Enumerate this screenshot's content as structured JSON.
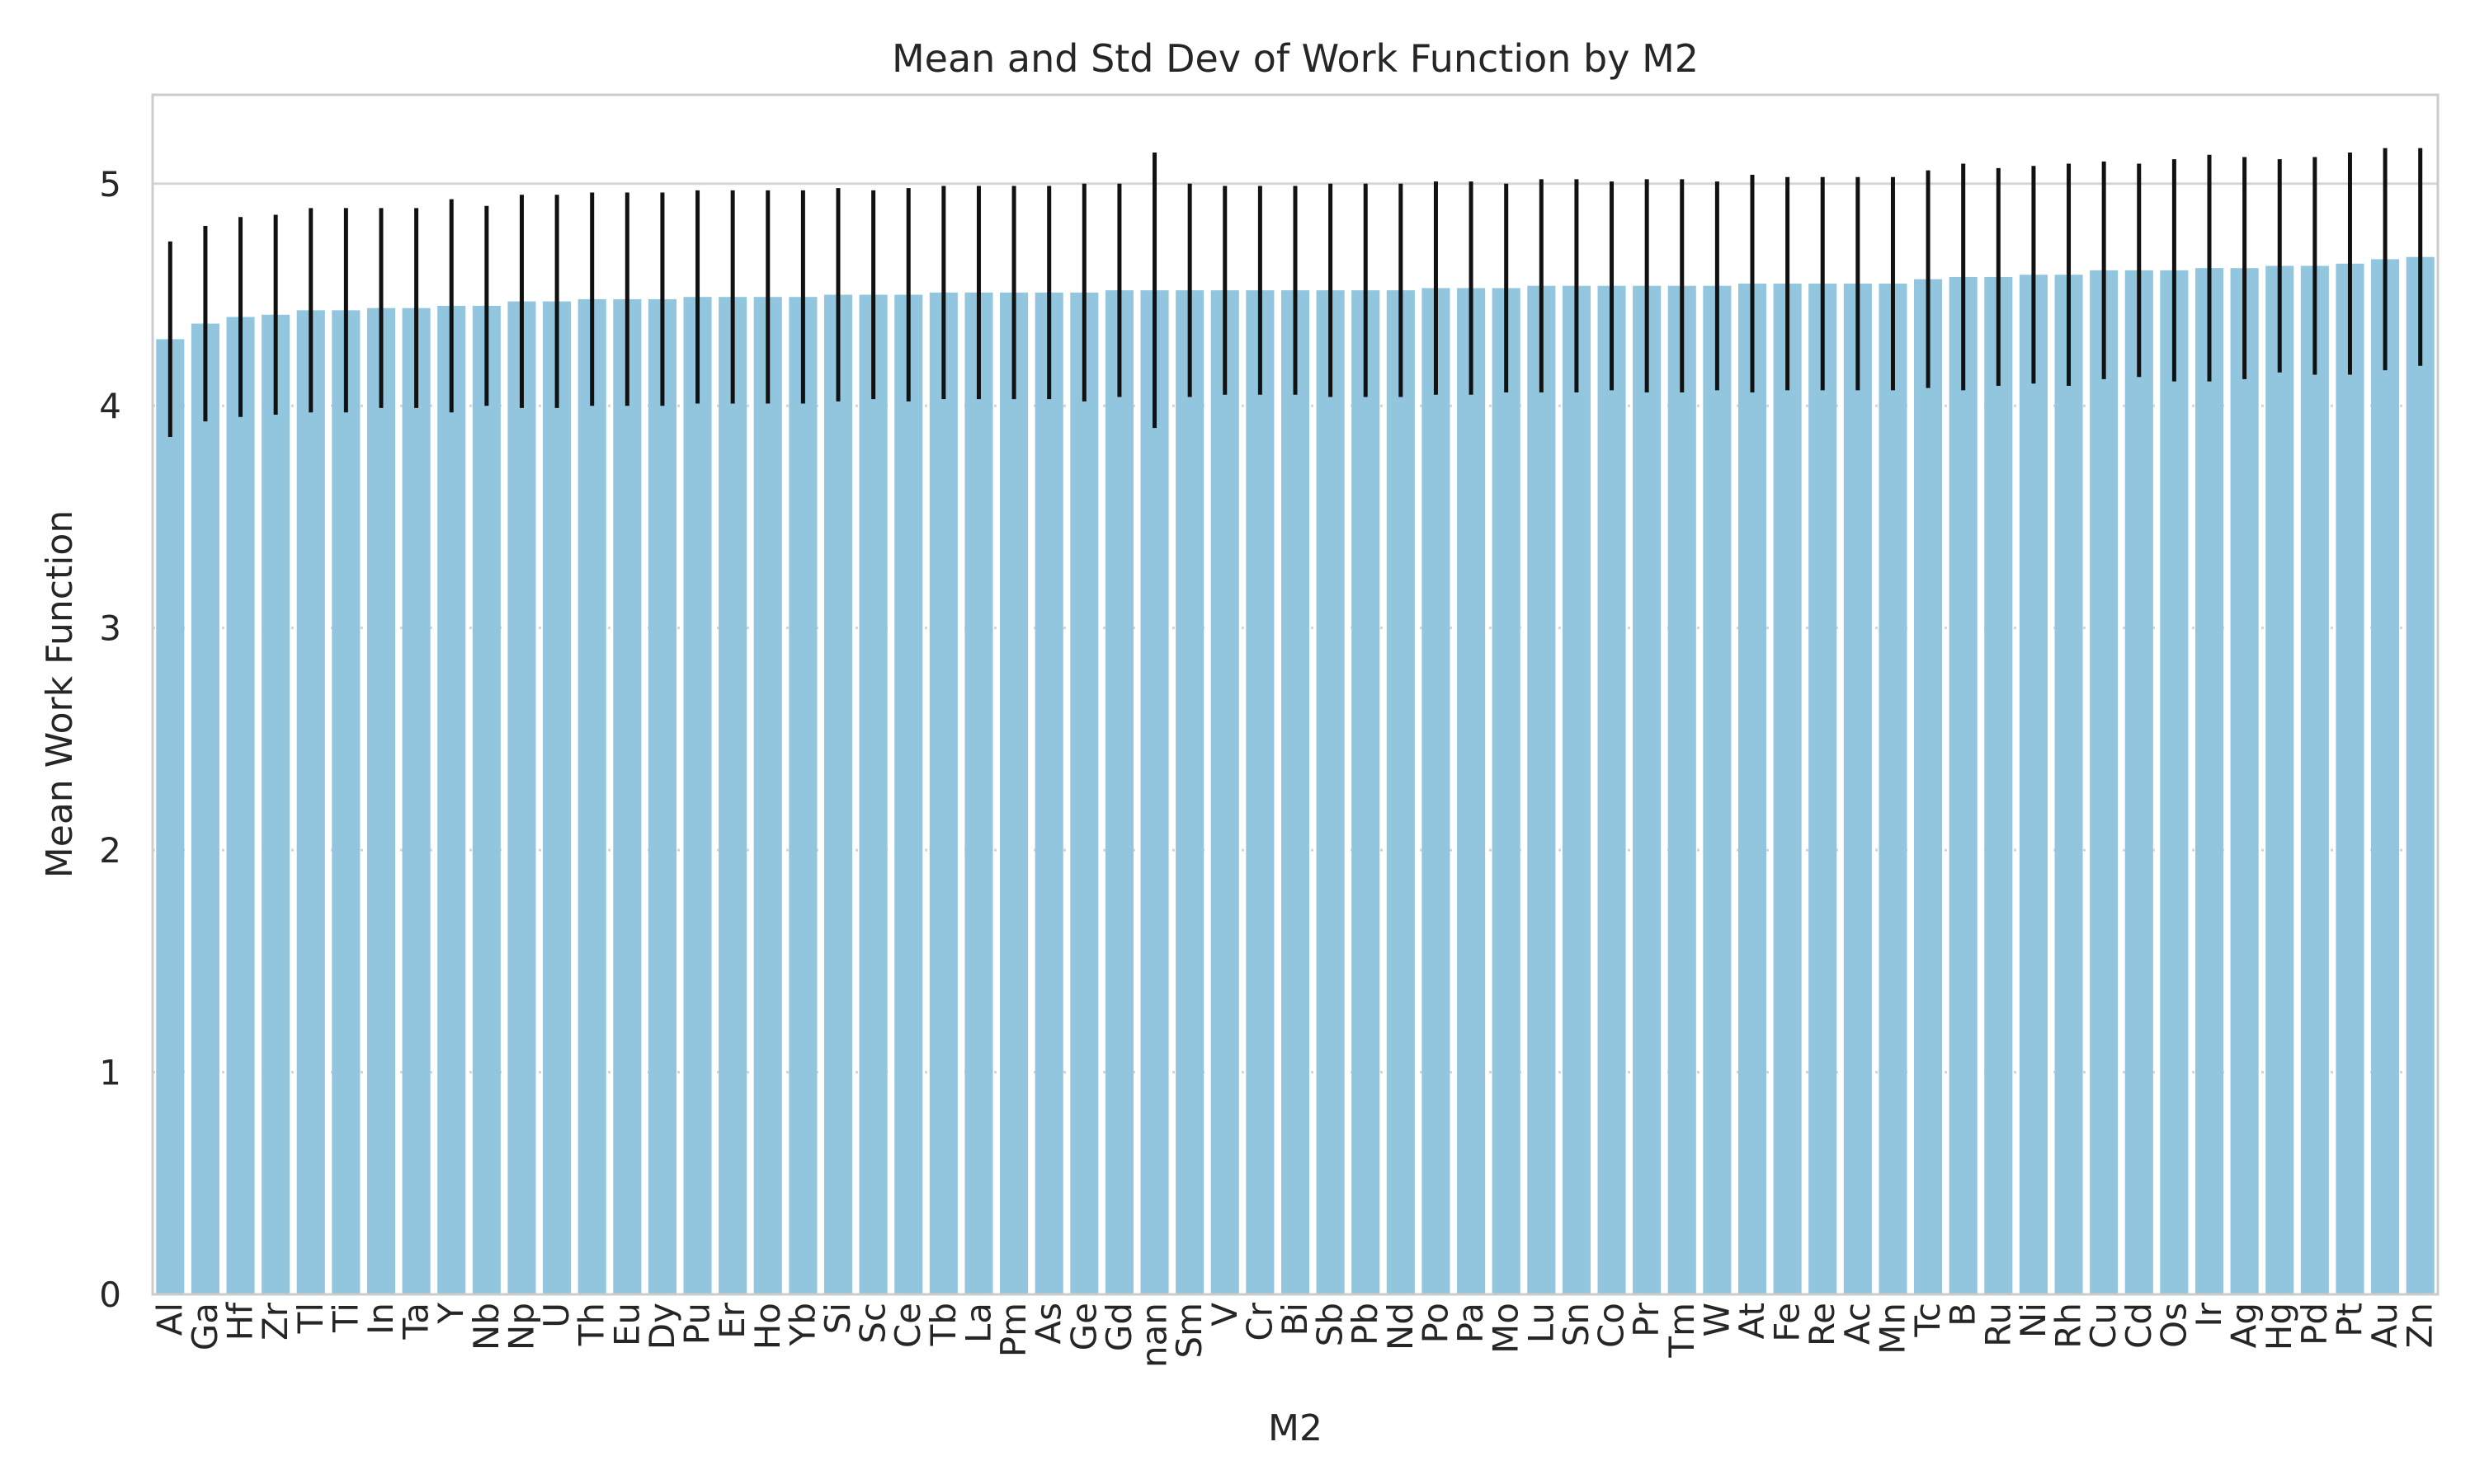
{
  "chart_data": {
    "type": "bar",
    "title": "Mean and Std Dev of Work Function by M2",
    "xlabel": "M2",
    "ylabel": "Mean Work Function",
    "ylim": [
      0,
      5.4
    ],
    "yticks": [
      0,
      1,
      2,
      3,
      4,
      5
    ],
    "grid": "y",
    "legend": "none",
    "categories": [
      "Al",
      "Ga",
      "Hf",
      "Zr",
      "Tl",
      "Ti",
      "In",
      "Ta",
      "Y",
      "Nb",
      "Np",
      "U",
      "Th",
      "Eu",
      "Dy",
      "Pu",
      "Er",
      "Ho",
      "Yb",
      "Si",
      "Sc",
      "Ce",
      "Tb",
      "La",
      "Pm",
      "As",
      "Ge",
      "Gd",
      "nan",
      "Sm",
      "V",
      "Cr",
      "Bi",
      "Sb",
      "Pb",
      "Nd",
      "Po",
      "Pa",
      "Mo",
      "Lu",
      "Sn",
      "Co",
      "Pr",
      "Tm",
      "W",
      "At",
      "Fe",
      "Re",
      "Ac",
      "Mn",
      "Tc",
      "B",
      "Ru",
      "Ni",
      "Rh",
      "Cu",
      "Cd",
      "Os",
      "Ir",
      "Ag",
      "Hg",
      "Pd",
      "Pt",
      "Au",
      "Zn"
    ],
    "series": [
      {
        "values": [
          4.3,
          4.37,
          4.4,
          4.41,
          4.43,
          4.43,
          4.44,
          4.44,
          4.45,
          4.45,
          4.47,
          4.47,
          4.48,
          4.48,
          4.48,
          4.49,
          4.49,
          4.49,
          4.49,
          4.5,
          4.5,
          4.5,
          4.51,
          4.51,
          4.51,
          4.51,
          4.51,
          4.52,
          4.52,
          4.52,
          4.52,
          4.52,
          4.52,
          4.52,
          4.52,
          4.52,
          4.53,
          4.53,
          4.53,
          4.54,
          4.54,
          4.54,
          4.54,
          4.54,
          4.54,
          4.55,
          4.55,
          4.55,
          4.55,
          4.55,
          4.57,
          4.58,
          4.58,
          4.59,
          4.59,
          4.61,
          4.61,
          4.61,
          4.62,
          4.62,
          4.63,
          4.63,
          4.64,
          4.66,
          4.67
        ],
        "errors": [
          0.44,
          0.44,
          0.45,
          0.45,
          0.46,
          0.46,
          0.45,
          0.45,
          0.48,
          0.45,
          0.48,
          0.48,
          0.48,
          0.48,
          0.48,
          0.48,
          0.48,
          0.48,
          0.48,
          0.48,
          0.47,
          0.48,
          0.48,
          0.48,
          0.48,
          0.48,
          0.49,
          0.48,
          0.62,
          0.48,
          0.47,
          0.47,
          0.47,
          0.48,
          0.48,
          0.48,
          0.48,
          0.48,
          0.47,
          0.48,
          0.48,
          0.47,
          0.48,
          0.48,
          0.47,
          0.49,
          0.48,
          0.48,
          0.48,
          0.48,
          0.49,
          0.51,
          0.49,
          0.49,
          0.5,
          0.49,
          0.48,
          0.5,
          0.51,
          0.5,
          0.48,
          0.49,
          0.5,
          0.5,
          0.49
        ]
      }
    ],
    "bar_color": "#92c6df",
    "error_color": "#111111",
    "grid_color": "#d5d5d5",
    "frame_color": "#cccccc",
    "text_color": "#262626"
  }
}
